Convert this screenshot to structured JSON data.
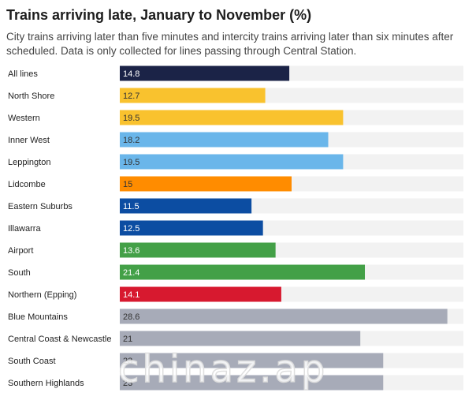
{
  "chart_data": {
    "type": "bar",
    "orientation": "horizontal",
    "title": "Trains arriving late, January to November (%)",
    "subtitle": "City trains arriving later than five minutes and intercity trains arriving later than six minutes after scheduled. Data is only collected for lines passing through Central Station.",
    "xlim": [
      0,
      30
    ],
    "grid": false,
    "track_color": "#f2f2f2",
    "categories": [
      "All lines",
      "North Shore",
      "Western",
      "Inner West",
      "Leppington",
      "Lidcombe",
      "Eastern Suburbs",
      "Illawarra",
      "Airport",
      "South",
      "Northern (Epping)",
      "Blue Mountains",
      "Central Coast & Newcastle",
      "South Coast",
      "Southern Highlands"
    ],
    "values": [
      14.8,
      12.7,
      19.5,
      18.2,
      19.5,
      15,
      11.5,
      12.5,
      13.6,
      21.4,
      14.1,
      28.6,
      21,
      23,
      23
    ],
    "value_labels": [
      "14.8",
      "12.7",
      "19.5",
      "18.2",
      "19.5",
      "15",
      "11.5",
      "12.5",
      "13.6",
      "21.4",
      "14.1",
      "28.6",
      "21",
      "23",
      "23"
    ],
    "colors": [
      "#1b2347",
      "#f9c22e",
      "#f9c22e",
      "#6ab6ea",
      "#6ab6ea",
      "#ff8c00",
      "#0c4da2",
      "#0c4da2",
      "#43a047",
      "#43a047",
      "#d7192f",
      "#a7abb8",
      "#a7abb8",
      "#a7abb8",
      "#a7abb8"
    ],
    "label_colors": [
      "#ffffff",
      "#333333",
      "#333333",
      "#333333",
      "#333333",
      "#333333",
      "#ffffff",
      "#ffffff",
      "#ffffff",
      "#ffffff",
      "#ffffff",
      "#333333",
      "#333333",
      "#333333",
      "#333333"
    ]
  },
  "watermark_text": "chinaz.ap"
}
